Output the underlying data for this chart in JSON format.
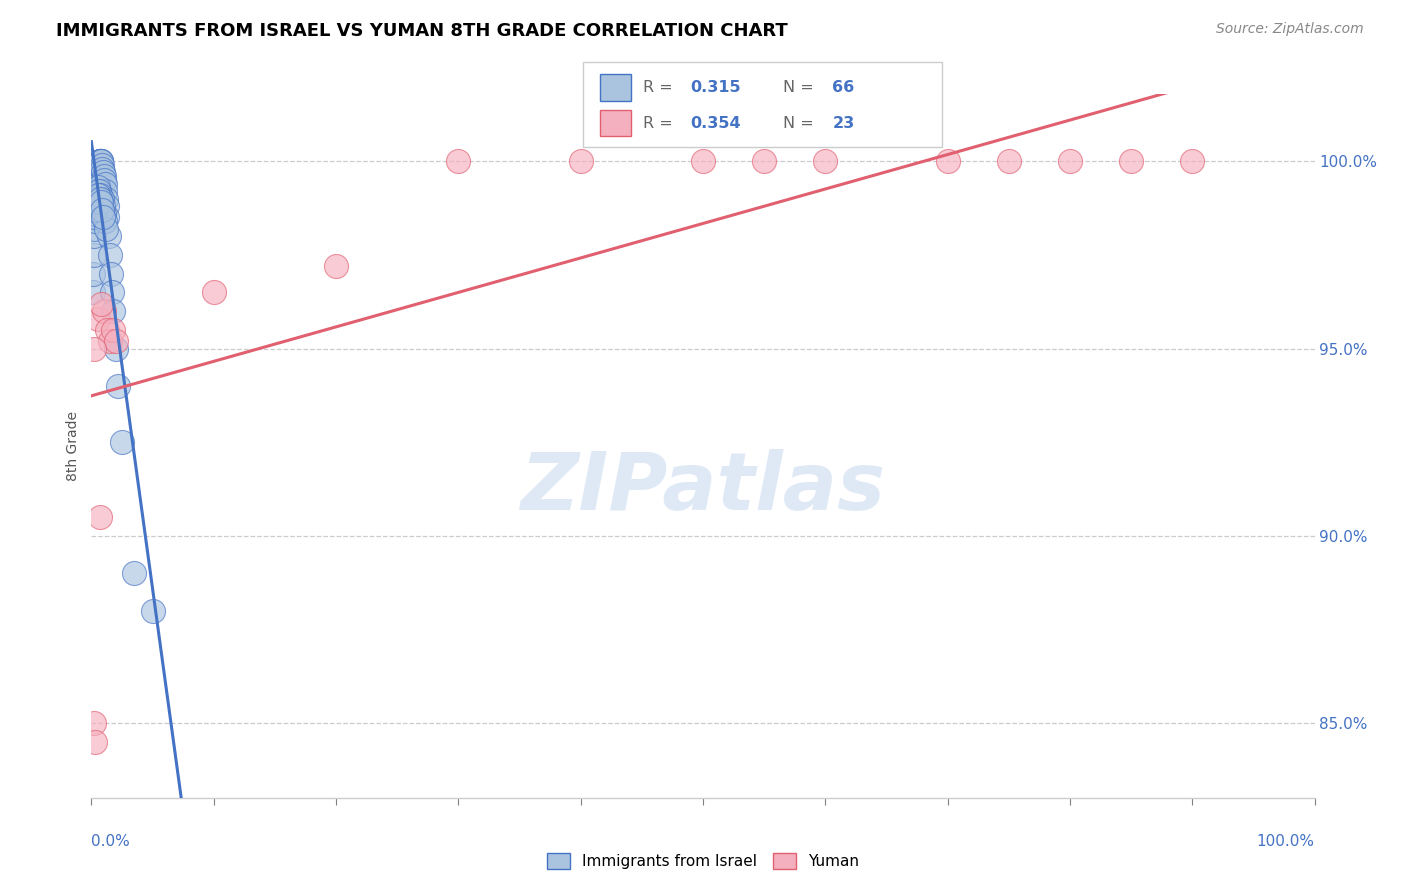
{
  "title": "IMMIGRANTS FROM ISRAEL VS YUMAN 8TH GRADE CORRELATION CHART",
  "source": "Source: ZipAtlas.com",
  "ylabel": "8th Grade",
  "ylabel_ticks": [
    85.0,
    90.0,
    95.0,
    100.0
  ],
  "xlim": [
    0.0,
    100.0
  ],
  "ylim": [
    83.0,
    101.8
  ],
  "blue_label": "Immigrants from Israel",
  "pink_label": "Yuman",
  "blue_R": 0.315,
  "blue_N": 66,
  "pink_R": 0.354,
  "pink_N": 23,
  "blue_fill_color": "#aac4e0",
  "blue_edge_color": "#4472c4",
  "pink_fill_color": "#f5b0bf",
  "pink_edge_color": "#e06070",
  "blue_line_color": "#4472c4",
  "pink_line_color": "#e06070",
  "label_color": "#4472c4",
  "watermark_text": "ZIPatlas",
  "blue_x": [
    0.1,
    0.15,
    0.2,
    0.22,
    0.25,
    0.28,
    0.3,
    0.32,
    0.35,
    0.38,
    0.4,
    0.42,
    0.45,
    0.48,
    0.5,
    0.52,
    0.55,
    0.58,
    0.6,
    0.62,
    0.65,
    0.68,
    0.7,
    0.72,
    0.75,
    0.78,
    0.8,
    0.85,
    0.9,
    0.95,
    1.0,
    1.05,
    1.1,
    1.15,
    1.2,
    1.25,
    1.3,
    1.4,
    1.5,
    1.6,
    1.7,
    1.8,
    2.0,
    2.2,
    2.5,
    0.18,
    0.33,
    0.43,
    0.53,
    0.63,
    0.73,
    0.83,
    0.93,
    1.03,
    1.13,
    1.23,
    0.27,
    0.37,
    0.47,
    0.57,
    0.67,
    0.77,
    0.87,
    0.97,
    3.5,
    5.0
  ],
  "blue_y": [
    96.5,
    97.0,
    97.5,
    98.0,
    98.2,
    98.4,
    98.6,
    98.8,
    99.0,
    99.1,
    99.2,
    99.3,
    99.4,
    99.5,
    99.6,
    99.7,
    99.7,
    99.8,
    99.8,
    99.9,
    99.9,
    100.0,
    100.0,
    100.0,
    100.0,
    100.0,
    100.0,
    99.9,
    99.8,
    99.7,
    99.6,
    99.5,
    99.4,
    99.2,
    99.0,
    98.8,
    98.5,
    98.0,
    97.5,
    97.0,
    96.5,
    96.0,
    95.0,
    94.0,
    92.5,
    98.5,
    99.1,
    99.2,
    99.3,
    99.2,
    99.1,
    99.0,
    98.8,
    98.6,
    98.4,
    98.2,
    98.7,
    98.9,
    99.0,
    99.1,
    99.0,
    98.9,
    98.7,
    98.5,
    89.0,
    88.0
  ],
  "pink_x": [
    0.2,
    0.3,
    0.5,
    0.7,
    1.0,
    1.3,
    1.5,
    1.8,
    2.0,
    10.0,
    20.0,
    30.0,
    40.0,
    50.0,
    55.0,
    60.0,
    70.0,
    75.0,
    80.0,
    85.0,
    90.0,
    0.25,
    0.8
  ],
  "pink_y": [
    85.0,
    84.5,
    95.8,
    90.5,
    96.0,
    95.5,
    95.2,
    95.5,
    95.2,
    96.5,
    97.2,
    100.0,
    100.0,
    100.0,
    100.0,
    100.0,
    100.0,
    100.0,
    100.0,
    100.0,
    100.0,
    95.0,
    96.2
  ]
}
